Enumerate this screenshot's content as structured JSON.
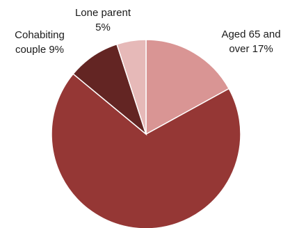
{
  "chart_data": {
    "type": "pie",
    "start_angle_deg": 0,
    "direction": "clockwise",
    "legend": "none",
    "slices": [
      {
        "label": "Aged 65 and over 17%",
        "label_lines": [
          "Aged 65 and",
          "over 17%"
        ],
        "value": 17,
        "color": "#d99594"
      },
      {
        "label": "",
        "label_lines": [],
        "value": 69,
        "color": "#953735"
      },
      {
        "label": "Cohabiting couple 9%",
        "label_lines": [
          "Cohabiting",
          "couple 9%"
        ],
        "value": 9,
        "color": "#632523"
      },
      {
        "label": "Lone parent 5%",
        "label_lines": [
          "Lone parent",
          "5%"
        ],
        "value": 5,
        "color": "#e6b9b8"
      }
    ]
  }
}
